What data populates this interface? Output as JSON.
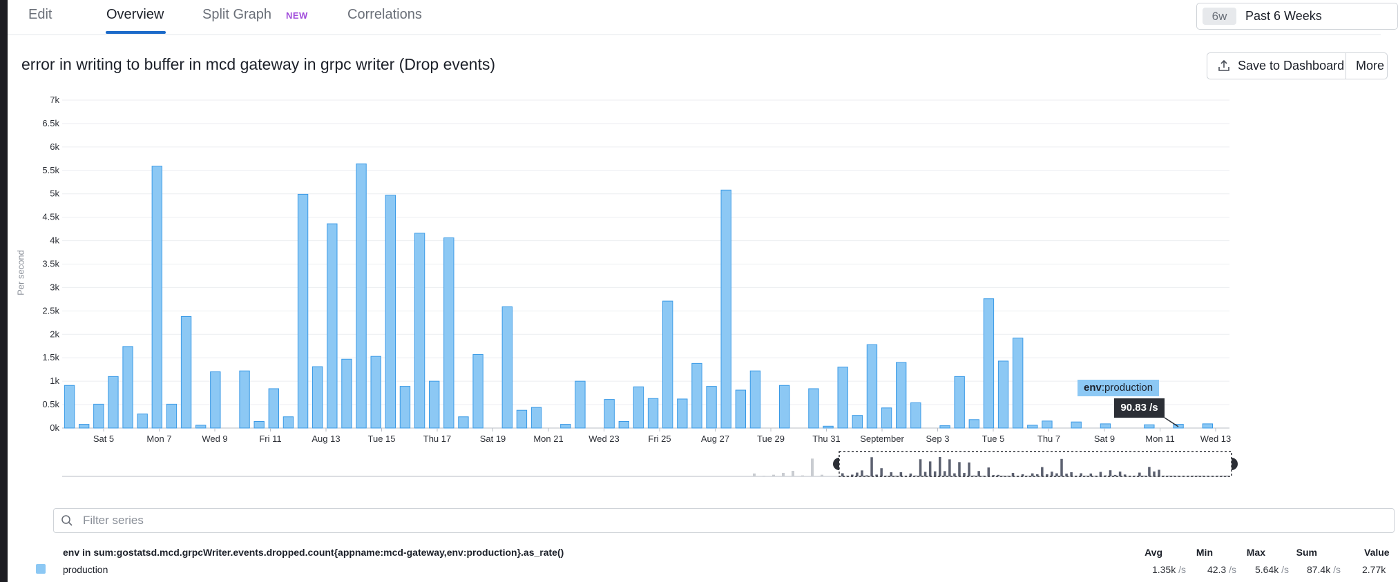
{
  "tabs": [
    {
      "label": "Edit"
    },
    {
      "label": "Overview",
      "active": true
    },
    {
      "label": "Split Graph",
      "badge": "NEW"
    },
    {
      "label": "Correlations"
    }
  ],
  "time_selector": {
    "chip": "6w",
    "label": "Past 6 Weeks"
  },
  "graph": {
    "title": "error in writing to buffer in mcd gateway in grpc writer (Drop events)"
  },
  "actions": {
    "save": "Save to Dashboard",
    "more": "More"
  },
  "tooltip": {
    "tag_key": "env",
    "tag_value": ":production",
    "value": "90.83 /s"
  },
  "filter": {
    "placeholder": "Filter series"
  },
  "legend": {
    "query": "env in sum:gostatsd.mcd.grpcWriter.events.dropped.count{appname:mcd-gateway,env:production}.as_rate()",
    "columns": [
      "Avg",
      "Min",
      "Max",
      "Sum",
      "Value"
    ],
    "rows": [
      {
        "name": "production",
        "color": "#8cc8f4",
        "avg": "1.35k",
        "min": "42.3",
        "max": "5.64k",
        "sum": "87.4k",
        "value": "2.77k",
        "unit": "/s"
      }
    ]
  },
  "chart_data": {
    "type": "bar",
    "ylabel": "Per second",
    "ylim": [
      0,
      7000
    ],
    "yticks": [
      "0k",
      "0.5k",
      "1k",
      "1.5k",
      "2k",
      "2.5k",
      "3k",
      "3.5k",
      "4k",
      "4.5k",
      "5k",
      "5.5k",
      "6k",
      "6.5k",
      "7k"
    ],
    "xticks": [
      "Sat 5",
      "Mon 7",
      "Wed 9",
      "Fri 11",
      "Aug 13",
      "Tue 15",
      "Thu 17",
      "Sat 19",
      "Mon 21",
      "Wed 23",
      "Fri 25",
      "Aug 27",
      "Tue 29",
      "Thu 31",
      "September",
      "Sep 3",
      "Tue 5",
      "Thu 7",
      "Sat 9",
      "Mon 11",
      "Wed 13"
    ],
    "color": "#8cc8f4",
    "series": [
      {
        "name": "production",
        "values": [
          910,
          80,
          510,
          1100,
          1740,
          300,
          5590,
          510,
          2380,
          60,
          1200,
          0,
          1220,
          140,
          840,
          240,
          4990,
          1310,
          4360,
          1470,
          5640,
          1530,
          4970,
          890,
          4160,
          1000,
          4060,
          240,
          1570,
          0,
          2590,
          380,
          440,
          0,
          80,
          1000,
          0,
          610,
          140,
          880,
          630,
          2710,
          620,
          1380,
          890,
          5080,
          810,
          1220,
          0,
          910,
          0,
          840,
          40,
          1300,
          270,
          1780,
          430,
          1400,
          540,
          0,
          50,
          1100,
          180,
          2760,
          1430,
          1920,
          60,
          150,
          0,
          130,
          0,
          90,
          0,
          0,
          70,
          0,
          80,
          0,
          90,
          0
        ]
      }
    ]
  }
}
